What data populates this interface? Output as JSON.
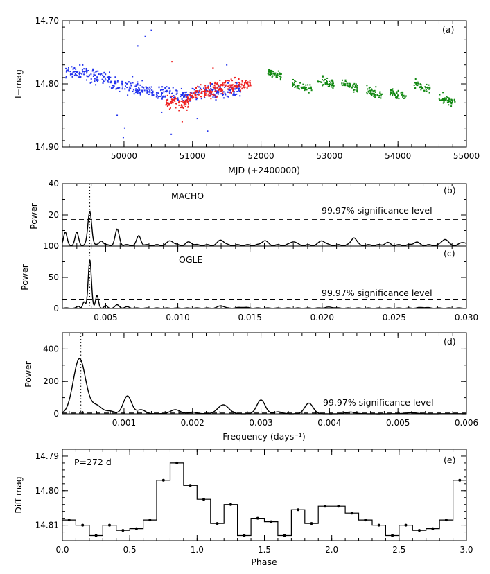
{
  "chart_data": [
    {
      "id": "a",
      "type": "scatter",
      "panel_label": "(a)",
      "xlabel": "MJD (+2400000)",
      "ylabel": "I−mag",
      "xlim": [
        49100,
        55000
      ],
      "ylim": [
        14.7,
        14.9
      ],
      "y_inverted": true,
      "xticks": [
        50000,
        51000,
        52000,
        53000,
        54000,
        55000
      ],
      "yticks": [
        14.7,
        14.8,
        14.9
      ],
      "ytick_labels": [
        "14.70",
        "14.80",
        "14.90"
      ],
      "series": [
        {
          "name": "blue",
          "color": "#2233ee",
          "segments": [
            {
              "x": [
                49150,
                49450
              ],
              "base": 14.78,
              "slope": 0.0
            },
            {
              "x": [
                49450,
                49800
              ],
              "base": 14.785,
              "slope": 2e-05
            },
            {
              "x": [
                49800,
                50400
              ],
              "base": 14.8,
              "slope": 2e-05
            },
            {
              "x": [
                50400,
                51000
              ],
              "base": 14.815,
              "slope": 5e-06
            },
            {
              "x": [
                51000,
                51700
              ],
              "base": 14.815,
              "slope": -1e-05
            }
          ],
          "scatter": 0.01,
          "n": 420,
          "outliers": [
            [
              49990,
              14.885
            ],
            [
              50010,
              14.87
            ],
            [
              50310,
              14.725
            ],
            [
              50200,
              14.74
            ],
            [
              50400,
              14.715
            ],
            [
              50690,
              14.88
            ],
            [
              51070,
              14.855
            ],
            [
              51220,
              14.875
            ],
            [
              50550,
              14.845
            ],
            [
              49900,
              14.85
            ],
            [
              51500,
              14.77
            ]
          ]
        },
        {
          "name": "red",
          "color": "#ee2222",
          "segments": [
            {
              "x": [
                50600,
                50950
              ],
              "base": 14.83,
              "slope": 0.0
            },
            {
              "x": [
                50950,
                51400
              ],
              "base": 14.82,
              "slope": -3e-05
            },
            {
              "x": [
                51400,
                51850
              ],
              "base": 14.805,
              "slope": -1e-05
            }
          ],
          "scatter": 0.009,
          "n": 280,
          "outliers": [
            [
              50700,
              14.765
            ],
            [
              51300,
              14.775
            ],
            [
              50850,
              14.86
            ],
            [
              51620,
              14.79
            ]
          ]
        },
        {
          "name": "green",
          "color": "#118811",
          "clusters": [
            {
              "x": 52200,
              "y": 14.785,
              "w": 100,
              "n": 48
            },
            {
              "x": 52600,
              "y": 14.805,
              "w": 140,
              "n": 50
            },
            {
              "x": 52950,
              "y": 14.798,
              "w": 120,
              "n": 50
            },
            {
              "x": 53300,
              "y": 14.803,
              "w": 120,
              "n": 45
            },
            {
              "x": 53650,
              "y": 14.815,
              "w": 120,
              "n": 45
            },
            {
              "x": 54000,
              "y": 14.818,
              "w": 120,
              "n": 45
            },
            {
              "x": 54350,
              "y": 14.805,
              "w": 120,
              "n": 45
            },
            {
              "x": 54720,
              "y": 14.825,
              "w": 120,
              "n": 48
            }
          ],
          "scatter": 0.006
        }
      ]
    },
    {
      "id": "b",
      "type": "line",
      "panel_label": "(b)",
      "title": "MACHO",
      "ylabel": "Power",
      "xlim": [
        0.002,
        0.03
      ],
      "ylim": [
        0,
        40
      ],
      "yticks": [
        0,
        20,
        40
      ],
      "significance": {
        "value": 17,
        "label": "99.97% significance level"
      },
      "marker_freq": 0.0039,
      "peaks": [
        [
          0.0022,
          8,
          0.00012
        ],
        [
          0.003,
          8,
          0.00012
        ],
        [
          0.0039,
          22,
          0.00013
        ],
        [
          0.0047,
          3,
          0.00013
        ],
        [
          0.0058,
          10,
          0.00014
        ],
        [
          0.0073,
          6,
          0.00014
        ],
        [
          0.0095,
          3,
          0.0002
        ],
        [
          0.0108,
          2,
          0.0002
        ],
        [
          0.013,
          3.5,
          0.0002
        ],
        [
          0.016,
          3,
          0.0002
        ],
        [
          0.018,
          2.5,
          0.0002
        ],
        [
          0.02,
          3,
          0.0002
        ],
        [
          0.0222,
          5,
          0.00018
        ],
        [
          0.0245,
          1.5,
          0.0002
        ],
        [
          0.0265,
          2,
          0.0002
        ],
        [
          0.0285,
          4,
          0.0002
        ],
        [
          0.0298,
          2,
          0.0002
        ]
      ]
    },
    {
      "id": "c",
      "type": "line",
      "panel_label": "(c)",
      "title": "OGLE",
      "ylabel": "Power",
      "xlabel": "",
      "xlim": [
        0.002,
        0.03
      ],
      "ylim": [
        0,
        100
      ],
      "yticks": [
        0,
        50,
        100
      ],
      "xticks": [
        0.005,
        0.01,
        0.015,
        0.02,
        0.025,
        0.03
      ],
      "xtick_labels": [
        "0.005",
        "0.010",
        "0.015",
        "0.020",
        "0.025",
        "0.030"
      ],
      "significance": {
        "value": 14,
        "label": "99.97% significance level"
      },
      "marker_freq": 0.0039,
      "peaks": [
        [
          0.0031,
          3,
          0.0001
        ],
        [
          0.0035,
          10,
          9e-05
        ],
        [
          0.0039,
          78,
          0.00011
        ],
        [
          0.0044,
          20,
          0.0001
        ],
        [
          0.005,
          4,
          0.0001
        ],
        [
          0.0058,
          5,
          0.00015
        ],
        [
          0.0065,
          2,
          0.00015
        ],
        [
          0.013,
          4,
          0.0002
        ],
        [
          0.0145,
          1.5,
          0.0003
        ],
        [
          0.0205,
          1.5,
          0.0003
        ],
        [
          0.027,
          1.2,
          0.0003
        ]
      ]
    },
    {
      "id": "d",
      "type": "line",
      "panel_label": "(d)",
      "ylabel": "Power",
      "xlabel": "Frequency (days⁻¹)",
      "xlim": [
        0.0001,
        0.006
      ],
      "ylim": [
        0,
        500
      ],
      "yticks": [
        0,
        200,
        400
      ],
      "xticks": [
        0.001,
        0.002,
        0.003,
        0.004,
        0.005,
        0.006
      ],
      "xtick_labels": [
        "0.001",
        "0.002",
        "0.003",
        "0.004",
        "0.005",
        "0.006"
      ],
      "significance": {
        "value": 5,
        "label": "99.97% significance level"
      },
      "marker_freq": 0.00037,
      "peaks": [
        [
          0.00035,
          340,
          9e-05
        ],
        [
          0.0006,
          50,
          8e-05
        ],
        [
          0.0008,
          15,
          6e-05
        ],
        [
          0.00105,
          110,
          6e-05
        ],
        [
          0.00125,
          25,
          6e-05
        ],
        [
          0.00175,
          25,
          7e-05
        ],
        [
          0.002,
          10,
          6e-05
        ],
        [
          0.00245,
          55,
          8e-05
        ],
        [
          0.003,
          85,
          6e-05
        ],
        [
          0.00325,
          12,
          6e-05
        ],
        [
          0.0037,
          65,
          6e-05
        ],
        [
          0.0043,
          10,
          7e-05
        ],
        [
          0.0052,
          6,
          8e-05
        ]
      ]
    },
    {
      "id": "e",
      "type": "line",
      "panel_label": "(e)",
      "annotation": "P=272 d",
      "xlabel": "Phase",
      "ylabel": "Diff mag",
      "xlim": [
        0.0,
        3.0
      ],
      "ylim": [
        14.788,
        14.8145
      ],
      "y_inverted": true,
      "xticks": [
        0.0,
        0.5,
        1.0,
        1.5,
        2.0,
        2.5,
        3.0
      ],
      "xtick_labels": [
        "0.0",
        "0.5",
        "1.0",
        "1.5",
        "2.0",
        "2.5",
        "3.0"
      ],
      "yticks": [
        14.79,
        14.8,
        14.81
      ],
      "ytick_labels": [
        "14.79",
        "14.80",
        "14.81"
      ],
      "bin_width": 0.1,
      "phase_values": [
        14.8085,
        14.81,
        14.813,
        14.81,
        14.8115,
        14.811,
        14.8085,
        14.797,
        14.792,
        14.7985,
        14.8025,
        14.8095,
        14.804,
        14.813,
        14.808,
        14.809,
        14.813,
        14.8055,
        14.8095,
        14.8045,
        14.8045,
        14.8065
      ]
    }
  ]
}
